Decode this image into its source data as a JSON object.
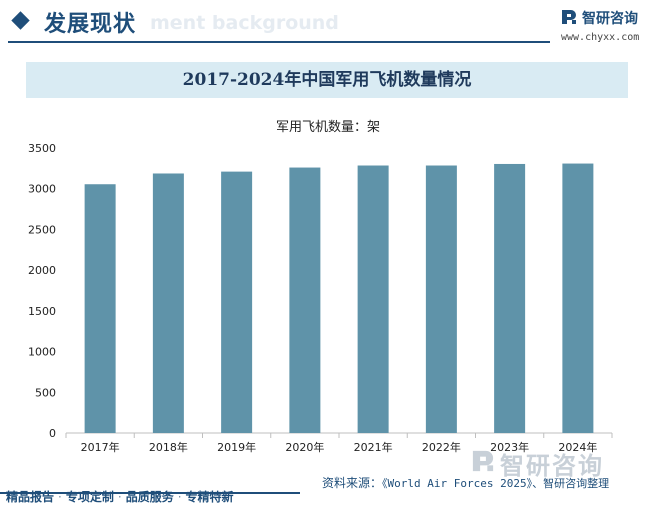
{
  "header": {
    "section_title": "发展现状",
    "bg_word": "ment background",
    "brand_name": "智研咨询",
    "brand_url": "www.chyxx.com",
    "watermark": "智研咨询"
  },
  "chart_data": {
    "type": "bar",
    "title": "2017-2024年中国军用飞机数量情况",
    "series_label": "军用飞机数量：架",
    "categories": [
      "2017年",
      "2018年",
      "2019年",
      "2020年",
      "2021年",
      "2022年",
      "2023年",
      "2024年"
    ],
    "series": [
      {
        "name": "军用飞机数量：架",
        "values": [
          3055,
          3187,
          3210,
          3260,
          3285,
          3285,
          3304,
          3309
        ]
      }
    ],
    "ylim": [
      0,
      3500
    ],
    "yticks": [
      0,
      500,
      1000,
      1500,
      2000,
      2500,
      3000,
      3500
    ],
    "grid": false,
    "bar_color": "#5f93a9"
  },
  "footer": {
    "source_prefix": "资料来源：",
    "source_text": "《World Air Forces 2025》、智研咨询整理",
    "services": [
      "精品报告",
      "专项定制",
      "品质服务",
      "专精特新"
    ]
  },
  "colors": {
    "brand": "#1f4e7a",
    "title_band": "#d9ebf3",
    "bar": "#5f93a9"
  }
}
